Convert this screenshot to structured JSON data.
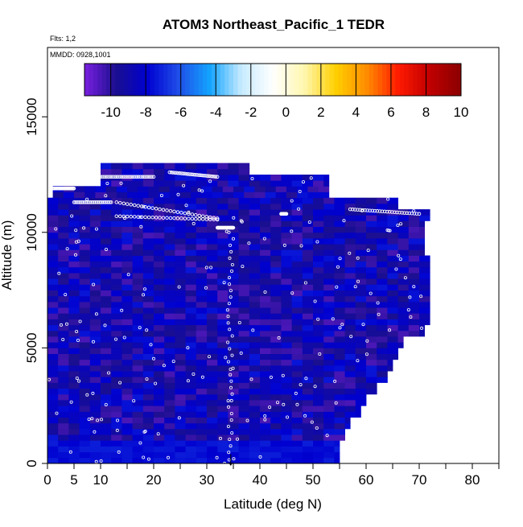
{
  "chart_data": {
    "type": "heatmap",
    "title": "ATOM3 Northeast_Pacific_1 TEDR",
    "subtitle_flights": "Flts: 1,2",
    "subtitle_dates": "MMDD: 0928,1001",
    "xlabel": "Latitude (deg N)",
    "ylabel": "Altitude (m)",
    "xlim": [
      0,
      85
    ],
    "ylim": [
      0,
      18000
    ],
    "x_ticks": [
      0,
      5,
      10,
      20,
      30,
      40,
      50,
      60,
      70,
      80
    ],
    "x_tick_labels": [
      "0",
      "5",
      "10",
      "20",
      "30",
      "40",
      "50",
      "60",
      "70",
      "80"
    ],
    "y_ticks": [
      0,
      5000,
      10000,
      15000
    ],
    "y_tick_labels": [
      "0",
      "5000",
      "10000",
      "15000"
    ],
    "colorbar": {
      "range": [
        -11.5,
        10
      ],
      "ticks": [
        -10,
        -8,
        -6,
        -4,
        -2,
        0,
        2,
        4,
        6,
        8,
        10
      ],
      "tick_labels": [
        "-10",
        "-8",
        "-6",
        "-4",
        "-2",
        "0",
        "2",
        "4",
        "6",
        "8",
        "10"
      ],
      "stops": [
        "#7a1fe0",
        "#1a0f8f",
        "#0000d0",
        "#1f4ee8",
        "#13a4ff",
        "#c7ebff",
        "#ffffff",
        "#fff7b0",
        "#ffd000",
        "#ff8c00",
        "#ff1a00",
        "#c00000",
        "#8b0000"
      ]
    },
    "marker": {
      "latitude": 34.5,
      "altitude": 0,
      "glyph": "↓"
    },
    "data_extent_note": "Gridded TEDR values range roughly -11 to -7 across 0–72°N, 0–13000 m; white circles mark flight sample locations."
  }
}
